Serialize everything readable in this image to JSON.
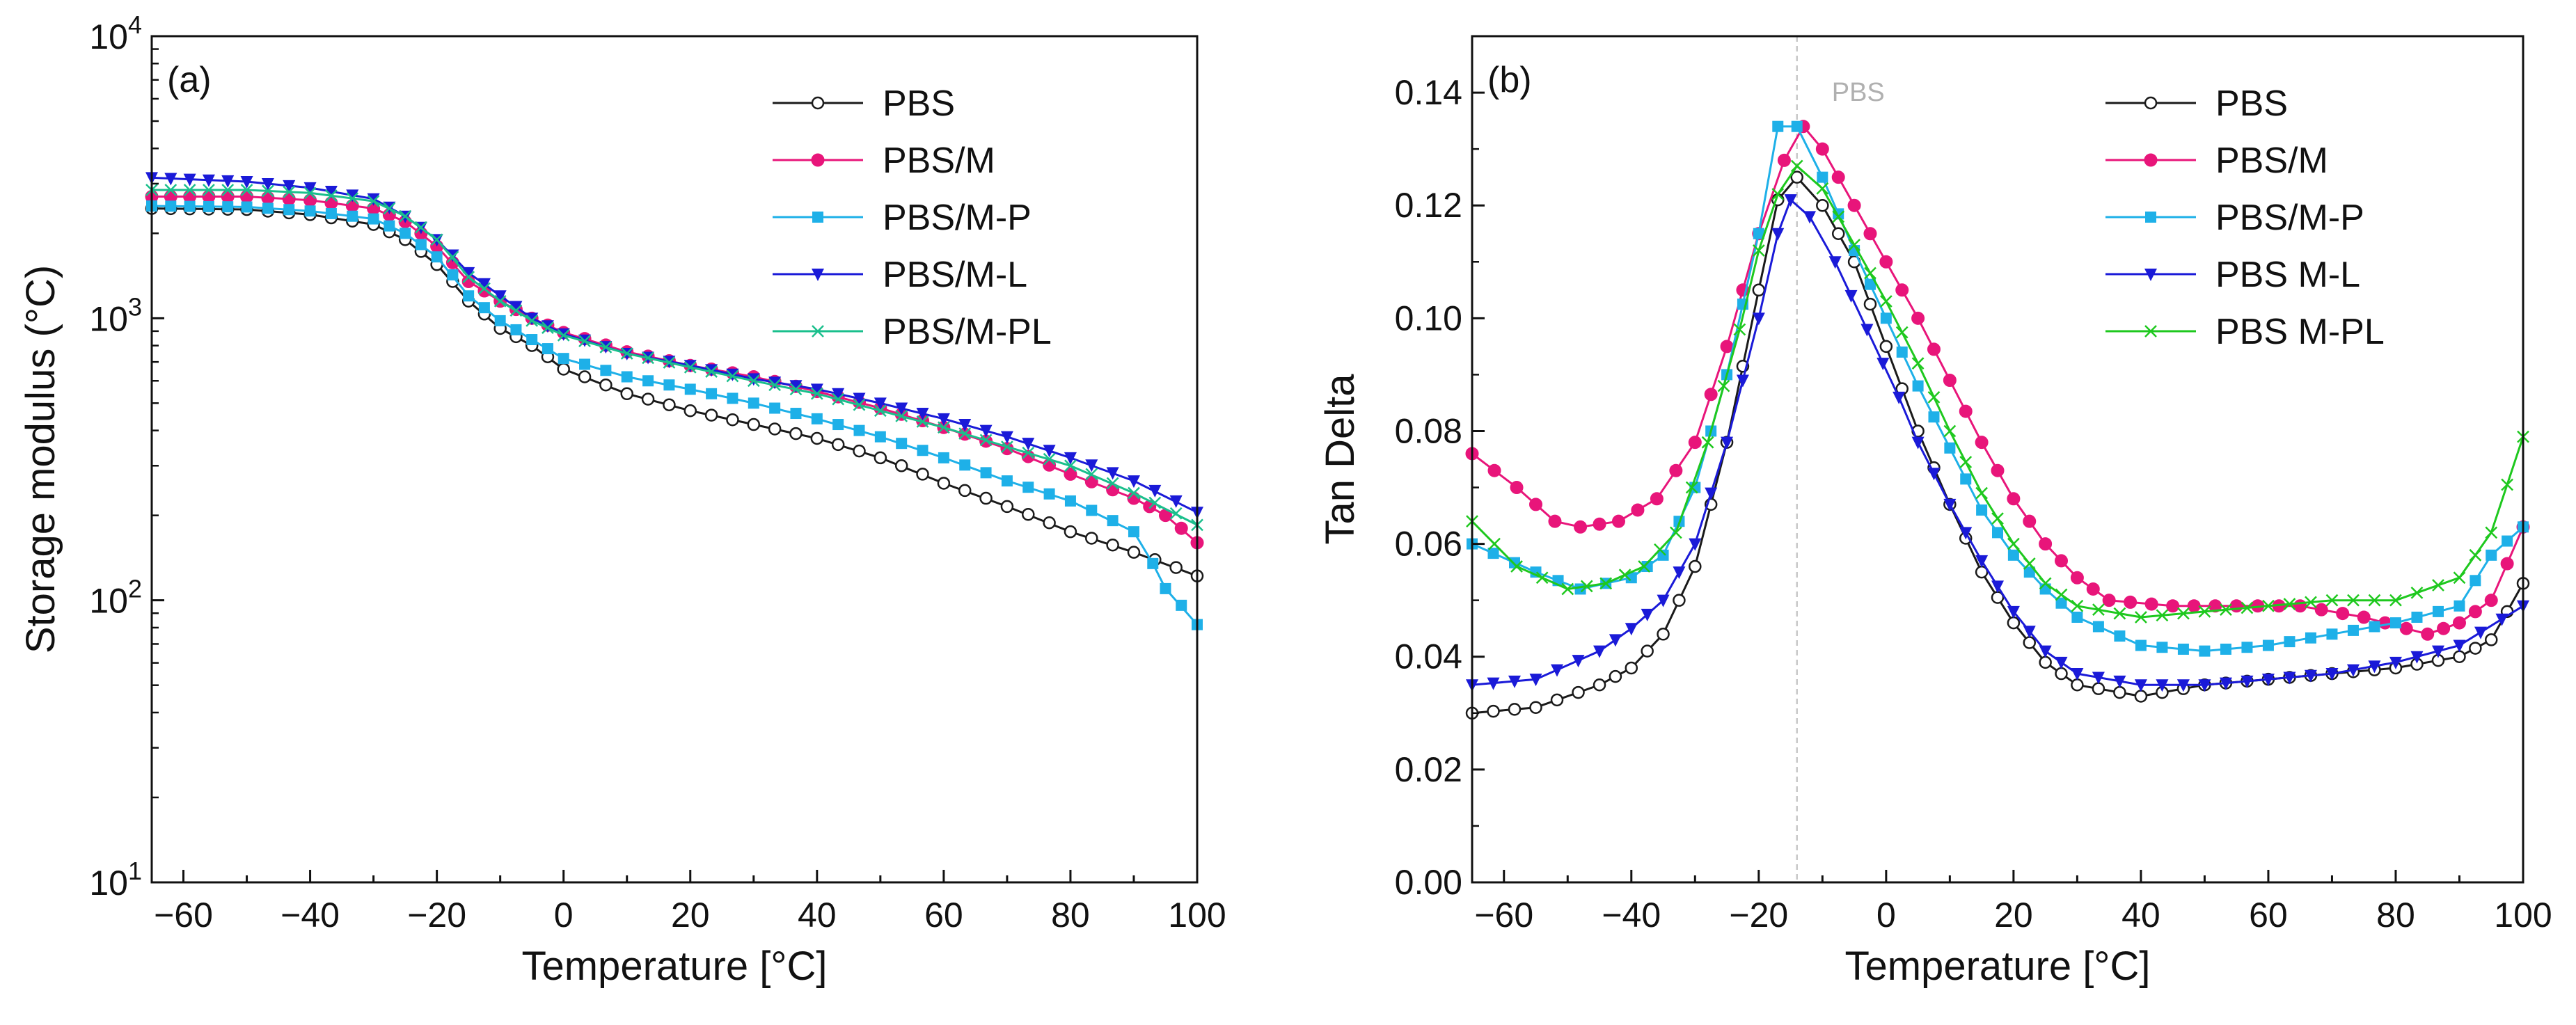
{
  "chart_data": [
    {
      "panel": "(a)",
      "type": "line",
      "xlabel": "Temperature [°C]",
      "ylabel": "Storage modulus (°C)",
      "y_scale": "log",
      "xlim": [
        -65,
        100
      ],
      "ylim": [
        10,
        10000
      ],
      "x_ticks": [
        -60,
        -40,
        -20,
        0,
        20,
        40,
        60,
        80,
        100
      ],
      "y_ticks": [
        10,
        100,
        1000,
        10000
      ],
      "legend_position": "top-right",
      "series": [
        {
          "name": "PBS",
          "color": "#1a1a1a",
          "marker": "circle-open",
          "points": [
            [
              -65,
              2450
            ],
            [
              -50,
              2430
            ],
            [
              -40,
              2330
            ],
            [
              -30,
              2150
            ],
            [
              -25,
              1900
            ],
            [
              -20,
              1550
            ],
            [
              -15,
              1150
            ],
            [
              -10,
              920
            ],
            [
              -5,
              800
            ],
            [
              0,
              660
            ],
            [
              10,
              540
            ],
            [
              20,
              470
            ],
            [
              30,
              420
            ],
            [
              40,
              375
            ],
            [
              50,
              320
            ],
            [
              60,
              260
            ],
            [
              70,
              215
            ],
            [
              80,
              175
            ],
            [
              90,
              148
            ],
            [
              100,
              122
            ]
          ]
        },
        {
          "name": "PBS/M",
          "color": "#e8157a",
          "marker": "circle-filled",
          "points": [
            [
              -65,
              2700
            ],
            [
              -50,
              2700
            ],
            [
              -40,
              2620
            ],
            [
              -30,
              2450
            ],
            [
              -25,
              2200
            ],
            [
              -20,
              1800
            ],
            [
              -15,
              1350
            ],
            [
              -10,
              1150
            ],
            [
              -5,
              1000
            ],
            [
              0,
              890
            ],
            [
              10,
              760
            ],
            [
              20,
              680
            ],
            [
              30,
              620
            ],
            [
              40,
              550
            ],
            [
              50,
              480
            ],
            [
              60,
              410
            ],
            [
              70,
              345
            ],
            [
              80,
              280
            ],
            [
              90,
              230
            ],
            [
              95,
              200
            ],
            [
              100,
              160
            ]
          ]
        },
        {
          "name": "PBS/M-P",
          "color": "#1eb0e8",
          "marker": "square-filled",
          "points": [
            [
              -65,
              2500
            ],
            [
              -50,
              2480
            ],
            [
              -40,
              2400
            ],
            [
              -30,
              2250
            ],
            [
              -25,
              2000
            ],
            [
              -20,
              1650
            ],
            [
              -15,
              1200
            ],
            [
              -10,
              980
            ],
            [
              -5,
              840
            ],
            [
              0,
              720
            ],
            [
              10,
              620
            ],
            [
              20,
              560
            ],
            [
              30,
              500
            ],
            [
              40,
              440
            ],
            [
              50,
              380
            ],
            [
              60,
              320
            ],
            [
              70,
              265
            ],
            [
              80,
              225
            ],
            [
              90,
              175
            ],
            [
              93,
              135
            ],
            [
              95,
              110
            ],
            [
              100,
              82
            ]
          ]
        },
        {
          "name": "PBS/M-L",
          "color": "#1a1ad8",
          "marker": "triangle-down-filled",
          "points": [
            [
              -65,
              3150
            ],
            [
              -50,
              3050
            ],
            [
              -40,
              2900
            ],
            [
              -30,
              2650
            ],
            [
              -25,
              2300
            ],
            [
              -20,
              1900
            ],
            [
              -15,
              1450
            ],
            [
              -10,
              1200
            ],
            [
              -5,
              1000
            ],
            [
              0,
              880
            ],
            [
              10,
              750
            ],
            [
              20,
              680
            ],
            [
              30,
              610
            ],
            [
              40,
              560
            ],
            [
              50,
              500
            ],
            [
              60,
              440
            ],
            [
              70,
              380
            ],
            [
              80,
              320
            ],
            [
              90,
              265
            ],
            [
              100,
              205
            ]
          ]
        },
        {
          "name": "PBS/M-PL",
          "color": "#1abf8c",
          "marker": "x",
          "points": [
            [
              -65,
              2850
            ],
            [
              -50,
              2850
            ],
            [
              -40,
              2780
            ],
            [
              -30,
              2600
            ],
            [
              -25,
              2300
            ],
            [
              -20,
              1900
            ],
            [
              -15,
              1400
            ],
            [
              -10,
              1150
            ],
            [
              -5,
              980
            ],
            [
              0,
              870
            ],
            [
              10,
              750
            ],
            [
              20,
              670
            ],
            [
              30,
              600
            ],
            [
              40,
              540
            ],
            [
              50,
              470
            ],
            [
              60,
              410
            ],
            [
              70,
              350
            ],
            [
              80,
              300
            ],
            [
              90,
              240
            ],
            [
              100,
              185
            ]
          ]
        }
      ]
    },
    {
      "panel": "(b)",
      "type": "line",
      "xlabel": "Temperature [°C]",
      "ylabel": "Tan Delta",
      "xlim": [
        -65,
        100
      ],
      "ylim": [
        0.0,
        0.15
      ],
      "x_ticks": [
        -60,
        -40,
        -20,
        0,
        20,
        40,
        60,
        80,
        100
      ],
      "y_ticks": [
        0.0,
        0.02,
        0.04,
        0.06,
        0.08,
        0.1,
        0.12,
        0.14
      ],
      "y_tick_labels": [
        "0.00",
        "0.02",
        "0.04",
        "0.06",
        "0.08",
        "0.10",
        "0.12",
        "0.14"
      ],
      "reference_line": {
        "x": -14,
        "label": "PBS"
      },
      "legend_position": "top-right",
      "series": [
        {
          "name": "PBS",
          "color": "#1a1a1a",
          "marker": "circle-open",
          "points": [
            [
              -65,
              0.03
            ],
            [
              -55,
              0.031
            ],
            [
              -45,
              0.035
            ],
            [
              -40,
              0.038
            ],
            [
              -35,
              0.044
            ],
            [
              -30,
              0.056
            ],
            [
              -25,
              0.078
            ],
            [
              -20,
              0.105
            ],
            [
              -17,
              0.121
            ],
            [
              -14,
              0.125
            ],
            [
              -10,
              0.12
            ],
            [
              -5,
              0.11
            ],
            [
              0,
              0.095
            ],
            [
              5,
              0.08
            ],
            [
              10,
              0.067
            ],
            [
              15,
              0.055
            ],
            [
              20,
              0.046
            ],
            [
              25,
              0.039
            ],
            [
              30,
              0.035
            ],
            [
              40,
              0.033
            ],
            [
              50,
              0.035
            ],
            [
              60,
              0.036
            ],
            [
              70,
              0.037
            ],
            [
              80,
              0.038
            ],
            [
              90,
              0.04
            ],
            [
              95,
              0.043
            ],
            [
              100,
              0.053
            ]
          ]
        },
        {
          "name": "PBS/M",
          "color": "#e8157a",
          "marker": "circle-filled",
          "points": [
            [
              -65,
              0.076
            ],
            [
              -58,
              0.07
            ],
            [
              -52,
              0.064
            ],
            [
              -48,
              0.063
            ],
            [
              -42,
              0.064
            ],
            [
              -36,
              0.068
            ],
            [
              -30,
              0.078
            ],
            [
              -25,
              0.095
            ],
            [
              -20,
              0.115
            ],
            [
              -16,
              0.128
            ],
            [
              -13,
              0.134
            ],
            [
              -10,
              0.13
            ],
            [
              -5,
              0.12
            ],
            [
              0,
              0.11
            ],
            [
              5,
              0.1
            ],
            [
              10,
              0.089
            ],
            [
              15,
              0.078
            ],
            [
              20,
              0.068
            ],
            [
              25,
              0.06
            ],
            [
              30,
              0.054
            ],
            [
              35,
              0.05
            ],
            [
              45,
              0.049
            ],
            [
              55,
              0.049
            ],
            [
              65,
              0.049
            ],
            [
              75,
              0.047
            ],
            [
              85,
              0.044
            ],
            [
              90,
              0.046
            ],
            [
              95,
              0.05
            ],
            [
              100,
              0.063
            ]
          ]
        },
        {
          "name": "PBS/M-P",
          "color": "#1eb0e8",
          "marker": "square-filled",
          "points": [
            [
              -65,
              0.06
            ],
            [
              -55,
              0.055
            ],
            [
              -48,
              0.052
            ],
            [
              -40,
              0.054
            ],
            [
              -35,
              0.058
            ],
            [
              -30,
              0.07
            ],
            [
              -25,
              0.09
            ],
            [
              -20,
              0.115
            ],
            [
              -17,
              0.134
            ],
            [
              -14,
              0.134
            ],
            [
              -10,
              0.125
            ],
            [
              -5,
              0.112
            ],
            [
              0,
              0.1
            ],
            [
              5,
              0.088
            ],
            [
              10,
              0.077
            ],
            [
              15,
              0.066
            ],
            [
              20,
              0.058
            ],
            [
              25,
              0.052
            ],
            [
              30,
              0.047
            ],
            [
              40,
              0.042
            ],
            [
              50,
              0.041
            ],
            [
              60,
              0.042
            ],
            [
              70,
              0.044
            ],
            [
              80,
              0.046
            ],
            [
              90,
              0.049
            ],
            [
              95,
              0.058
            ],
            [
              100,
              0.063
            ]
          ]
        },
        {
          "name": "PBS M-L",
          "color": "#1a1ad8",
          "marker": "triangle-down-filled",
          "points": [
            [
              -65,
              0.035
            ],
            [
              -55,
              0.036
            ],
            [
              -45,
              0.041
            ],
            [
              -40,
              0.045
            ],
            [
              -35,
              0.05
            ],
            [
              -30,
              0.06
            ],
            [
              -25,
              0.078
            ],
            [
              -20,
              0.1
            ],
            [
              -17,
              0.115
            ],
            [
              -15,
              0.121
            ],
            [
              -12,
              0.118
            ],
            [
              -8,
              0.11
            ],
            [
              -3,
              0.098
            ],
            [
              2,
              0.086
            ],
            [
              5,
              0.078
            ],
            [
              10,
              0.067
            ],
            [
              15,
              0.057
            ],
            [
              20,
              0.048
            ],
            [
              25,
              0.041
            ],
            [
              30,
              0.037
            ],
            [
              40,
              0.035
            ],
            [
              50,
              0.035
            ],
            [
              60,
              0.036
            ],
            [
              70,
              0.037
            ],
            [
              80,
              0.039
            ],
            [
              90,
              0.042
            ],
            [
              100,
              0.049
            ]
          ]
        },
        {
          "name": "PBS M-PL",
          "color": "#1ec81e",
          "marker": "x",
          "points": [
            [
              -65,
              0.064
            ],
            [
              -58,
              0.056
            ],
            [
              -50,
              0.052
            ],
            [
              -44,
              0.053
            ],
            [
              -38,
              0.056
            ],
            [
              -33,
              0.062
            ],
            [
              -28,
              0.078
            ],
            [
              -23,
              0.098
            ],
            [
              -20,
              0.112
            ],
            [
              -17,
              0.122
            ],
            [
              -14,
              0.127
            ],
            [
              -10,
              0.123
            ],
            [
              -5,
              0.113
            ],
            [
              0,
              0.103
            ],
            [
              5,
              0.092
            ],
            [
              10,
              0.08
            ],
            [
              15,
              0.069
            ],
            [
              20,
              0.06
            ],
            [
              25,
              0.053
            ],
            [
              30,
              0.049
            ],
            [
              40,
              0.047
            ],
            [
              50,
              0.048
            ],
            [
              60,
              0.049
            ],
            [
              70,
              0.05
            ],
            [
              80,
              0.05
            ],
            [
              90,
              0.054
            ],
            [
              95,
              0.062
            ],
            [
              100,
              0.079
            ]
          ]
        }
      ]
    }
  ]
}
